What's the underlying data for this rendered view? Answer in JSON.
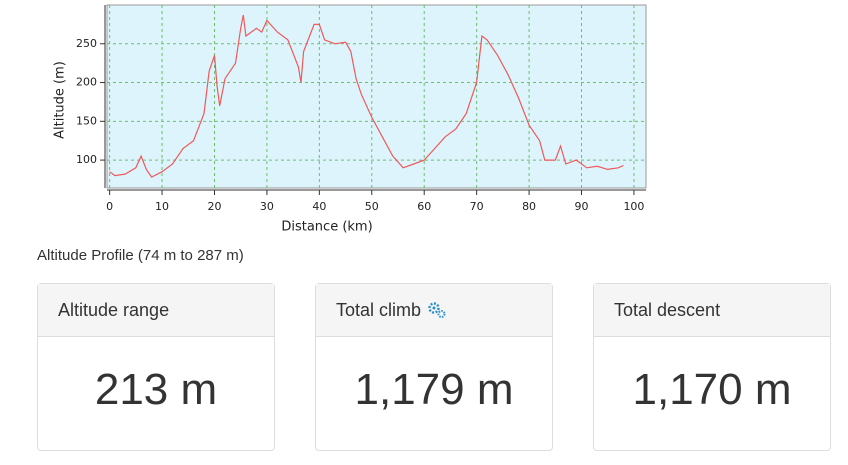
{
  "chart_data": {
    "type": "line",
    "xlabel": "Distance (km)",
    "ylabel": "Altitude (m)",
    "x": [
      0,
      1,
      3,
      5,
      6,
      7,
      8,
      10,
      12,
      14,
      16,
      18,
      19,
      20,
      20.5,
      21,
      22,
      24,
      25,
      25.5,
      26,
      28,
      29,
      30,
      32,
      34,
      36,
      36.5,
      37,
      39,
      40,
      41,
      43,
      45,
      46,
      47,
      48,
      49,
      50,
      52,
      54,
      56,
      58,
      60,
      62,
      64,
      66,
      68,
      70,
      71,
      72,
      74,
      76,
      78,
      80,
      82,
      83,
      85,
      86,
      87,
      89,
      91,
      93,
      95,
      97,
      98
    ],
    "series": [
      {
        "name": "Altitude",
        "color": "#ee5a5a",
        "values": [
          85,
          80,
          82,
          90,
          105,
          88,
          78,
          85,
          95,
          115,
          125,
          160,
          215,
          235,
          195,
          170,
          205,
          225,
          270,
          287,
          260,
          270,
          265,
          280,
          265,
          255,
          220,
          200,
          240,
          275,
          275,
          255,
          250,
          252,
          240,
          205,
          185,
          170,
          155,
          130,
          105,
          90,
          95,
          100,
          115,
          130,
          140,
          160,
          200,
          260,
          255,
          235,
          210,
          180,
          145,
          125,
          100,
          100,
          118,
          95,
          100,
          90,
          92,
          88,
          90,
          93
        ]
      }
    ],
    "xlim": [
      -0.5,
      102.3
    ],
    "ylim": [
      64,
      300
    ],
    "xticks": [
      0,
      10,
      20,
      30,
      40,
      50,
      60,
      70,
      80,
      90,
      100
    ],
    "yticks": [
      100,
      150,
      200,
      250
    ],
    "grid": true,
    "background": "#ddf4fd",
    "grid_color": "#6cbf6c"
  },
  "caption": "Altitude Profile (74 m to 287 m)",
  "cards": [
    {
      "title": "Altitude range",
      "value": "213 m"
    },
    {
      "title": "Total climb",
      "value": "1,179 m"
    },
    {
      "title": "Total descent",
      "value": "1,170 m"
    }
  ]
}
